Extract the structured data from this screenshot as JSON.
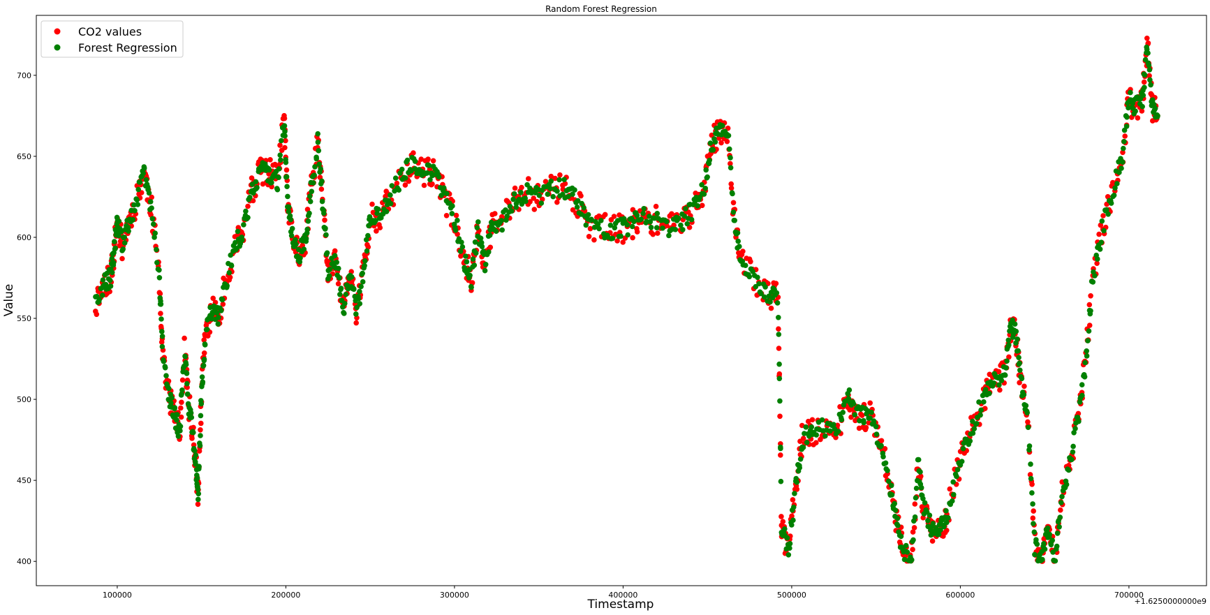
{
  "chart_data": {
    "type": "scatter",
    "title": "Random Forest Regression",
    "xlabel": "Timestamp",
    "ylabel": "Value",
    "x_offset_label": "+1.6250000000e9",
    "xlim": [
      52000,
      746000
    ],
    "ylim": [
      385,
      737
    ],
    "x_ticks": [
      100000,
      200000,
      300000,
      400000,
      500000,
      600000,
      700000
    ],
    "x_tick_labels": [
      "100000",
      "200000",
      "300000",
      "400000",
      "500000",
      "600000",
      "700000"
    ],
    "y_ticks": [
      400,
      450,
      500,
      550,
      600,
      650,
      700
    ],
    "y_tick_labels": [
      "400",
      "450",
      "500",
      "550",
      "600",
      "650",
      "700"
    ],
    "grid": false,
    "legend_position": "top-left",
    "anchors": [
      [
        87000,
        558
      ],
      [
        92000,
        572
      ],
      [
        96000,
        575
      ],
      [
        98000,
        590
      ],
      [
        100000,
        610
      ],
      [
        103000,
        595
      ],
      [
        107000,
        610
      ],
      [
        112000,
        625
      ],
      [
        116000,
        640
      ],
      [
        120000,
        620
      ],
      [
        125000,
        575
      ],
      [
        127000,
        528
      ],
      [
        131000,
        500
      ],
      [
        134000,
        490
      ],
      [
        137000,
        480
      ],
      [
        140000,
        532
      ],
      [
        142000,
        500
      ],
      [
        145000,
        478
      ],
      [
        147000,
        455
      ],
      [
        148000,
        442
      ],
      [
        150000,
        505
      ],
      [
        152000,
        537
      ],
      [
        156000,
        555
      ],
      [
        160000,
        552
      ],
      [
        165000,
        575
      ],
      [
        170000,
        595
      ],
      [
        175000,
        605
      ],
      [
        180000,
        630
      ],
      [
        185000,
        640
      ],
      [
        190000,
        640
      ],
      [
        195000,
        635
      ],
      [
        199000,
        674
      ],
      [
        201000,
        620
      ],
      [
        204000,
        600
      ],
      [
        208000,
        590
      ],
      [
        212000,
        600
      ],
      [
        215000,
        630
      ],
      [
        219000,
        660
      ],
      [
        222000,
        620
      ],
      [
        225000,
        580
      ],
      [
        230000,
        585
      ],
      [
        234000,
        555
      ],
      [
        238000,
        580
      ],
      [
        242000,
        552
      ],
      [
        246000,
        580
      ],
      [
        250000,
        612
      ],
      [
        256000,
        612
      ],
      [
        262000,
        625
      ],
      [
        270000,
        640
      ],
      [
        276000,
        645
      ],
      [
        282000,
        640
      ],
      [
        288000,
        640
      ],
      [
        294000,
        625
      ],
      [
        300000,
        612
      ],
      [
        306000,
        585
      ],
      [
        310000,
        575
      ],
      [
        314000,
        605
      ],
      [
        318000,
        585
      ],
      [
        322000,
        605
      ],
      [
        328000,
        610
      ],
      [
        335000,
        622
      ],
      [
        342000,
        628
      ],
      [
        350000,
        625
      ],
      [
        358000,
        630
      ],
      [
        366000,
        630
      ],
      [
        373000,
        622
      ],
      [
        380000,
        608
      ],
      [
        390000,
        605
      ],
      [
        398000,
        605
      ],
      [
        405000,
        608
      ],
      [
        412000,
        612
      ],
      [
        420000,
        610
      ],
      [
        428000,
        605
      ],
      [
        435000,
        610
      ],
      [
        442000,
        618
      ],
      [
        448000,
        630
      ],
      [
        452000,
        655
      ],
      [
        456000,
        665
      ],
      [
        462000,
        668
      ],
      [
        466000,
        610
      ],
      [
        470000,
        585
      ],
      [
        478000,
        575
      ],
      [
        486000,
        565
      ],
      [
        492000,
        562
      ],
      [
        494000,
        420
      ],
      [
        498000,
        408
      ],
      [
        502000,
        440
      ],
      [
        506000,
        475
      ],
      [
        512000,
        480
      ],
      [
        520000,
        482
      ],
      [
        528000,
        485
      ],
      [
        534000,
        500
      ],
      [
        540000,
        490
      ],
      [
        546000,
        490
      ],
      [
        552000,
        475
      ],
      [
        558000,
        450
      ],
      [
        562000,
        425
      ],
      [
        566000,
        408
      ],
      [
        571000,
        400
      ],
      [
        575000,
        460
      ],
      [
        578000,
        435
      ],
      [
        583000,
        420
      ],
      [
        588000,
        420
      ],
      [
        592000,
        428
      ],
      [
        598000,
        455
      ],
      [
        604000,
        475
      ],
      [
        610000,
        490
      ],
      [
        616000,
        505
      ],
      [
        622000,
        512
      ],
      [
        627000,
        520
      ],
      [
        630000,
        545
      ],
      [
        633000,
        540
      ],
      [
        636000,
        510
      ],
      [
        640000,
        490
      ],
      [
        644000,
        410
      ],
      [
        648000,
        400
      ],
      [
        652000,
        420
      ],
      [
        656000,
        400
      ],
      [
        660000,
        440
      ],
      [
        665000,
        460
      ],
      [
        670000,
        490
      ],
      [
        674000,
        520
      ],
      [
        678000,
        568
      ],
      [
        684000,
        605
      ],
      [
        690000,
        625
      ],
      [
        696000,
        650
      ],
      [
        700000,
        685
      ],
      [
        704000,
        680
      ],
      [
        708000,
        685
      ],
      [
        711000,
        718
      ],
      [
        714000,
        680
      ],
      [
        717000,
        675
      ]
    ],
    "series": [
      {
        "name": "CO2 values",
        "color": "#ff0000",
        "jitter": 9,
        "seed": 11
      },
      {
        "name": "Forest Regression",
        "color": "#008000",
        "jitter": 6,
        "seed": 29
      }
    ]
  }
}
